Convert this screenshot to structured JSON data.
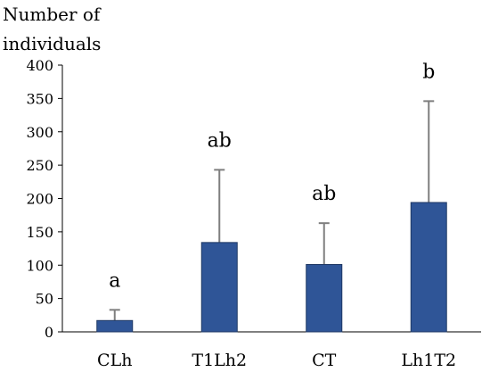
{
  "chart_data": {
    "type": "bar",
    "ylabel_lines": [
      "Number of",
      "individuals"
    ],
    "categories": [
      "CLh",
      "T1Lh2",
      "CT",
      "Lh1T2"
    ],
    "values": [
      17,
      134,
      101,
      194
    ],
    "error_upper": [
      33,
      243,
      163,
      346
    ],
    "significance_letters": [
      "a",
      "ab",
      "ab",
      "b"
    ],
    "yticks": [
      0,
      50,
      100,
      150,
      200,
      250,
      300,
      350,
      400
    ],
    "ylim": [
      0,
      400
    ],
    "grid": false,
    "bar_color": "#2f5597",
    "bar_edge_color": "#1f3864",
    "error_color": "#7f7f7f"
  }
}
